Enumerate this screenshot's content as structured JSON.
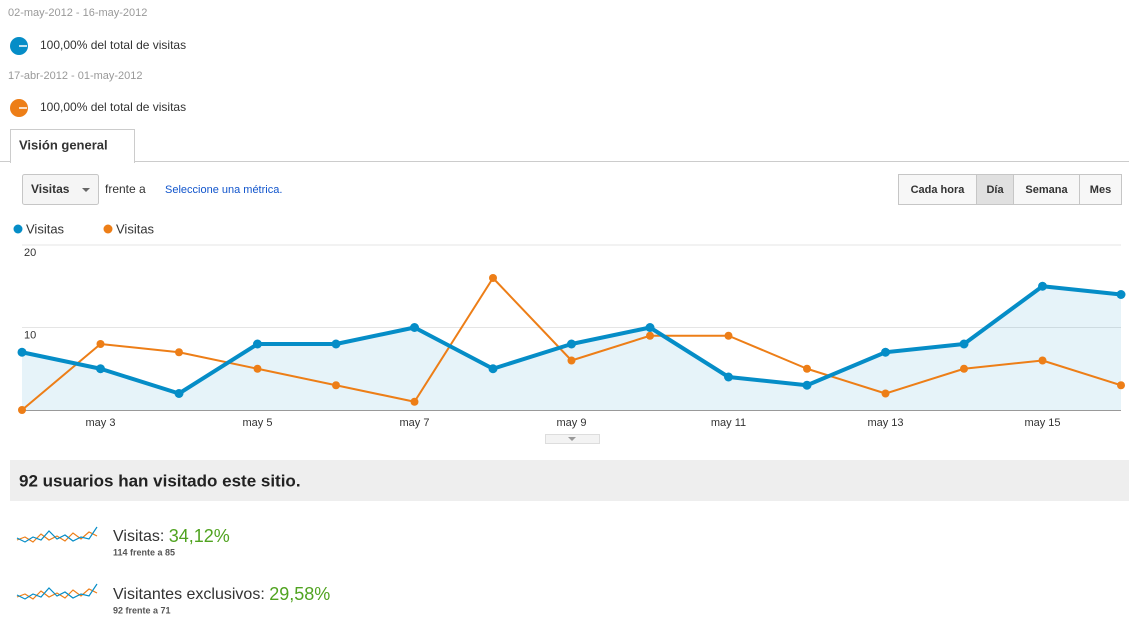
{
  "segments": [
    {
      "date_range": "02-may-2012 - 16-may-2012",
      "label": "100,00% del total de visitas",
      "color": "#058dc7"
    },
    {
      "date_range": "17-abr-2012 - 01-may-2012",
      "label": "100,00% del total de visitas",
      "color": "#ed7e17"
    }
  ],
  "tab": "Visión general",
  "metric_selector": {
    "metric": "Visitas",
    "versus": "frente a",
    "link": "Seleccione una métrica."
  },
  "granularity": {
    "options": [
      "Cada hora",
      "Día",
      "Semana",
      "Mes"
    ],
    "selected": 1
  },
  "chart_data": {
    "type": "line",
    "categories": [
      null,
      "may 3",
      null,
      "may 5",
      null,
      "may 7",
      null,
      "may 9",
      null,
      "may 11",
      null,
      "may 13",
      null,
      "may 15",
      null
    ],
    "series": [
      {
        "name": "Visitas",
        "color": "#058dc7",
        "area": true,
        "values": [
          7,
          5,
          2,
          8,
          8,
          10,
          5,
          8,
          10,
          4,
          3,
          7,
          8,
          15,
          14
        ]
      },
      {
        "name": "Visitas",
        "color": "#ed7e17",
        "area": false,
        "values": [
          0,
          8,
          7,
          5,
          3,
          1,
          16,
          6,
          9,
          9,
          5,
          2,
          5,
          6,
          3
        ]
      }
    ],
    "ylim": [
      0,
      20
    ],
    "yticks": [
      10,
      20
    ],
    "grid": true
  },
  "summary": {
    "headline": "92 usuarios han visitado este sitio.",
    "metrics": [
      {
        "name": "Visitas:",
        "change": "34,12%",
        "detail": "114 frente a 85"
      },
      {
        "name": "Visitantes exclusivos:",
        "change": "29,58%",
        "detail": "92 frente a 71"
      }
    ]
  }
}
